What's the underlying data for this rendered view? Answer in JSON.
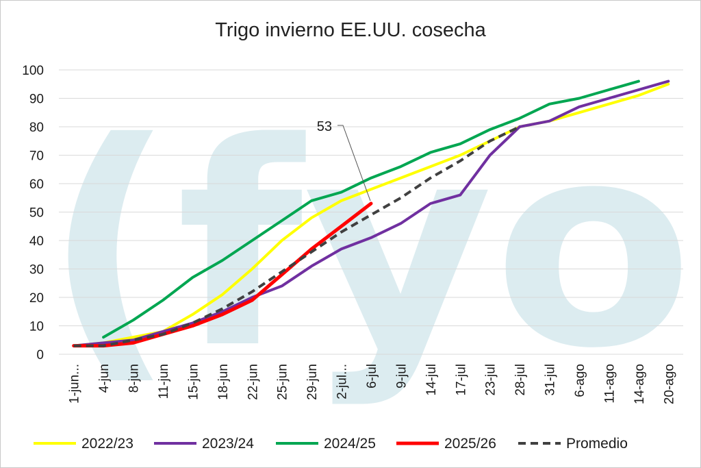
{
  "chart_data": {
    "type": "line",
    "title": "Trigo invierno EE.UU. cosecha",
    "watermark": "(fyo",
    "categories": [
      "1-jun...",
      "4-jun",
      "8-jun",
      "11-jun",
      "15-jun",
      "18-jun",
      "22-jun",
      "25-jun",
      "29-jun",
      "2-jul...",
      "6-jul",
      "9-jul",
      "14-jul",
      "17-jul",
      "23-jul",
      "28-jul",
      "31-jul",
      "6-ago",
      "11-ago",
      "14-ago",
      "20-ago"
    ],
    "ylim": [
      0,
      100
    ],
    "yticks": [
      "0",
      "10",
      "20",
      "30",
      "40",
      "50",
      "60",
      "70",
      "80",
      "90",
      "100"
    ],
    "grid": true,
    "legend_position": "bottom",
    "series": [
      {
        "name": "2022/23",
        "color": "#ffff00",
        "style": "solid",
        "values": [
          3,
          4,
          6,
          8,
          14,
          21,
          30,
          40,
          48,
          54,
          58,
          62,
          66,
          70,
          75,
          80,
          82,
          85,
          88,
          91,
          95
        ]
      },
      {
        "name": "2023/24",
        "color": "#7030a0",
        "style": "solid",
        "values": [
          3,
          4,
          5,
          8,
          11,
          15,
          20,
          24,
          31,
          37,
          41,
          46,
          53,
          56,
          70,
          80,
          82,
          87,
          90,
          93,
          96
        ]
      },
      {
        "name": "2024/25",
        "color": "#00a651",
        "style": "solid",
        "values": [
          null,
          6,
          12,
          19,
          27,
          33,
          40,
          47,
          54,
          57,
          62,
          66,
          71,
          74,
          79,
          83,
          88,
          90,
          93,
          96,
          null
        ]
      },
      {
        "name": "2025/26",
        "color": "#ff0000",
        "style": "solid",
        "values": [
          3,
          3,
          4,
          7,
          10,
          14,
          19,
          28,
          37,
          45,
          53,
          null,
          null,
          null,
          null,
          null,
          null,
          null,
          null,
          null,
          null
        ]
      },
      {
        "name": "Promedio",
        "color": "#404040",
        "style": "dashed",
        "values": [
          3,
          3,
          5,
          7,
          11,
          16,
          22,
          29,
          36,
          43,
          49,
          55,
          62,
          68,
          75,
          80,
          null,
          null,
          null,
          null,
          null
        ]
      }
    ],
    "annotations": [
      {
        "text": "53",
        "series": "2025/26",
        "category": "6-jul",
        "value": 53
      }
    ]
  }
}
